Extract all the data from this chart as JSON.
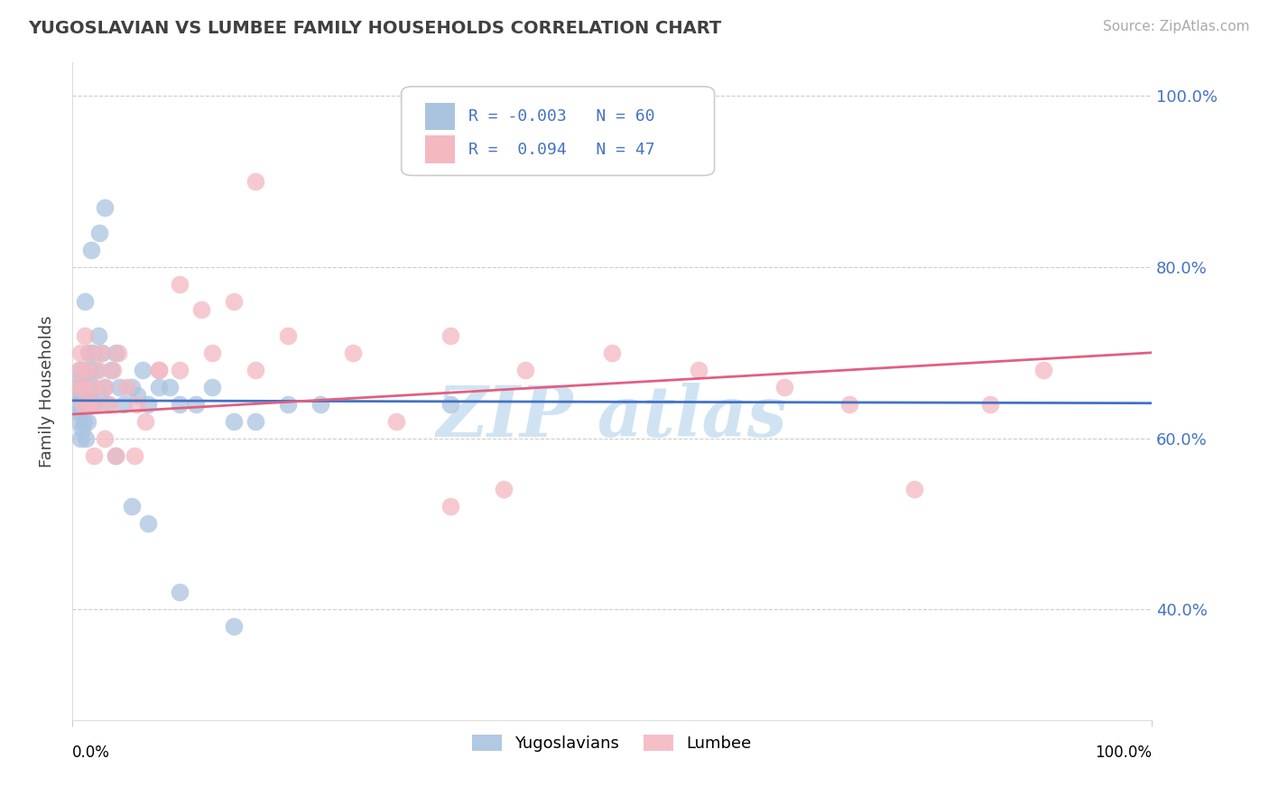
{
  "title": "YUGOSLAVIAN VS LUMBEE FAMILY HOUSEHOLDS CORRELATION CHART",
  "source": "Source: ZipAtlas.com",
  "ylabel": "Family Households",
  "xmin": 0.0,
  "xmax": 1.0,
  "ymin": 0.27,
  "ymax": 1.04,
  "yticks": [
    0.4,
    0.6,
    0.8,
    1.0
  ],
  "ytick_labels": [
    "40.0%",
    "60.0%",
    "80.0%",
    "100.0%"
  ],
  "grid_color": "#cccccc",
  "background_color": "#ffffff",
  "yugoslavian_color": "#aac4e0",
  "lumbee_color": "#f4b8c1",
  "trend_blue": "#4472c4",
  "trend_pink": "#e06080",
  "legend_text_color": "#4472c4",
  "watermark_color": "#c8dff0",
  "yugoslavian_x": [
    0.004,
    0.005,
    0.006,
    0.006,
    0.007,
    0.007,
    0.008,
    0.008,
    0.009,
    0.009,
    0.01,
    0.01,
    0.011,
    0.011,
    0.012,
    0.012,
    0.013,
    0.013,
    0.014,
    0.014,
    0.015,
    0.016,
    0.017,
    0.018,
    0.019,
    0.02,
    0.021,
    0.022,
    0.024,
    0.026,
    0.028,
    0.03,
    0.033,
    0.036,
    0.04,
    0.044,
    0.048,
    0.055,
    0.06,
    0.065,
    0.07,
    0.08,
    0.09,
    0.1,
    0.115,
    0.13,
    0.15,
    0.17,
    0.2,
    0.23,
    0.012,
    0.018,
    0.025,
    0.03,
    0.04,
    0.055,
    0.07,
    0.1,
    0.15,
    0.35
  ],
  "yugoslavian_y": [
    0.64,
    0.66,
    0.65,
    0.62,
    0.68,
    0.63,
    0.67,
    0.6,
    0.65,
    0.61,
    0.66,
    0.64,
    0.62,
    0.66,
    0.64,
    0.68,
    0.6,
    0.64,
    0.62,
    0.66,
    0.7,
    0.65,
    0.68,
    0.64,
    0.7,
    0.66,
    0.64,
    0.68,
    0.72,
    0.65,
    0.7,
    0.66,
    0.64,
    0.68,
    0.7,
    0.66,
    0.64,
    0.66,
    0.65,
    0.68,
    0.64,
    0.66,
    0.66,
    0.64,
    0.64,
    0.66,
    0.62,
    0.62,
    0.64,
    0.64,
    0.76,
    0.82,
    0.84,
    0.87,
    0.58,
    0.52,
    0.5,
    0.42,
    0.38,
    0.64
  ],
  "lumbee_x": [
    0.005,
    0.007,
    0.008,
    0.01,
    0.011,
    0.012,
    0.013,
    0.015,
    0.017,
    0.019,
    0.021,
    0.024,
    0.027,
    0.03,
    0.034,
    0.038,
    0.043,
    0.05,
    0.058,
    0.068,
    0.08,
    0.1,
    0.13,
    0.17,
    0.26,
    0.35,
    0.42,
    0.5,
    0.58,
    0.66,
    0.72,
    0.78,
    0.85,
    0.9,
    0.12,
    0.2,
    0.3,
    0.4,
    0.02,
    0.03,
    0.04,
    0.06,
    0.08,
    0.1,
    0.15,
    0.35,
    0.17
  ],
  "lumbee_y": [
    0.66,
    0.68,
    0.7,
    0.64,
    0.66,
    0.72,
    0.68,
    0.64,
    0.7,
    0.66,
    0.64,
    0.68,
    0.7,
    0.66,
    0.64,
    0.68,
    0.7,
    0.66,
    0.58,
    0.62,
    0.68,
    0.68,
    0.7,
    0.68,
    0.7,
    0.72,
    0.68,
    0.7,
    0.68,
    0.66,
    0.64,
    0.54,
    0.64,
    0.68,
    0.75,
    0.72,
    0.62,
    0.54,
    0.58,
    0.6,
    0.58,
    0.64,
    0.68,
    0.78,
    0.76,
    0.52,
    0.9
  ],
  "yug_trend_y0": 0.644,
  "yug_trend_y1": 0.641,
  "lum_trend_y0": 0.628,
  "lum_trend_y1": 0.7
}
